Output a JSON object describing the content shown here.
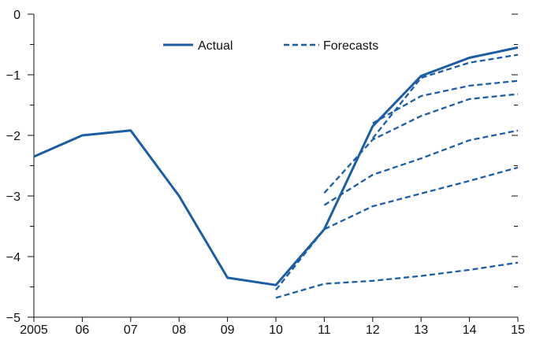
{
  "chart_data": {
    "type": "line",
    "x_labels": [
      "2005",
      "06",
      "07",
      "08",
      "09",
      "10",
      "11",
      "12",
      "13",
      "14",
      "15"
    ],
    "x": [
      2005,
      2006,
      2007,
      2008,
      2009,
      2010,
      2011,
      2012,
      2013,
      2014,
      2015
    ],
    "ylim": [
      -5,
      0
    ],
    "y_ticks": [
      0,
      -1,
      -2,
      -3,
      -4,
      -5
    ],
    "y_tick_labels": [
      "0",
      "−1",
      "−2",
      "−3",
      "−4",
      "−5"
    ],
    "legend": {
      "position": "top-center",
      "actual_label": "Actual",
      "forecast_label": "Forecasts"
    },
    "actual": {
      "x": [
        2005,
        2006,
        2007,
        2008,
        2009,
        2010,
        2011,
        2012,
        2013,
        2014,
        2015
      ],
      "y": [
        -2.35,
        -2.0,
        -1.92,
        -3.0,
        -4.35,
        -4.47,
        -3.55,
        -1.85,
        -1.02,
        -0.72,
        -0.55
      ]
    },
    "forecasts": [
      {
        "x": [
          2010,
          2011,
          2012,
          2013,
          2014,
          2015
        ],
        "y": [
          -4.68,
          -4.45,
          -4.4,
          -4.32,
          -4.22,
          -4.1
        ]
      },
      {
        "x": [
          2010,
          2011,
          2012,
          2013,
          2014,
          2015
        ],
        "y": [
          -4.55,
          -3.55,
          -3.17,
          -2.96,
          -2.75,
          -2.53
        ]
      },
      {
        "x": [
          2011,
          2012,
          2013,
          2014,
          2015
        ],
        "y": [
          -3.15,
          -2.65,
          -2.38,
          -2.08,
          -1.92
        ]
      },
      {
        "x": [
          2011,
          2012,
          2013,
          2014,
          2015
        ],
        "y": [
          -2.95,
          -2.07,
          -1.68,
          -1.4,
          -1.32
        ]
      },
      {
        "x": [
          2012,
          2013,
          2014,
          2015
        ],
        "y": [
          -1.8,
          -1.35,
          -1.18,
          -1.1
        ]
      },
      {
        "x": [
          2012,
          2013,
          2014,
          2015
        ],
        "y": [
          -2.05,
          -1.05,
          -0.8,
          -0.67
        ]
      }
    ],
    "color": "#1b5ea6",
    "grid": false
  }
}
